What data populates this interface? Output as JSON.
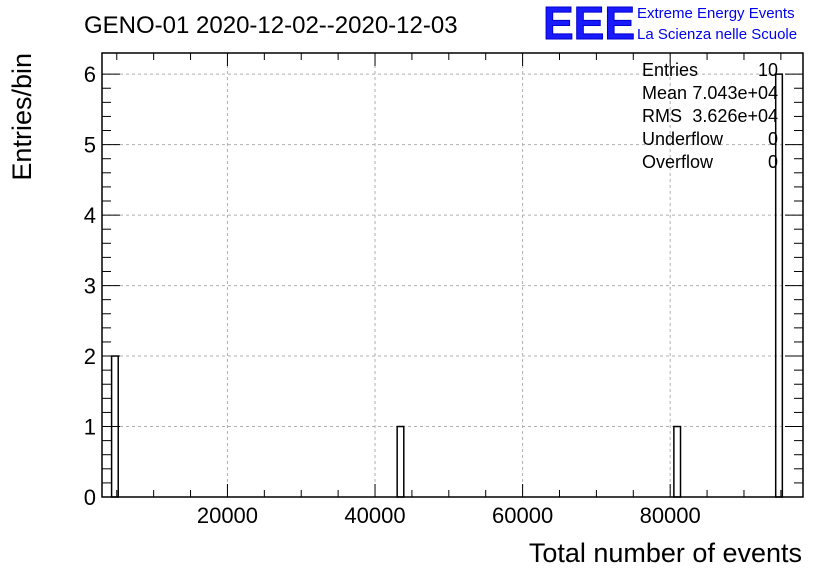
{
  "header": {
    "title": "GENO-01 2020-12-02--2020-12-03"
  },
  "logo": {
    "mark": "EEE",
    "line1": "Extreme Energy Events",
    "line2": "La Scienza nelle Scuole",
    "color": "#0000ff"
  },
  "stats": {
    "rows": [
      {
        "label": "Entries",
        "value": "10"
      },
      {
        "label": "Mean",
        "value": "7.043e+04"
      },
      {
        "label": "RMS",
        "value": "3.626e+04"
      },
      {
        "label": "Underflow",
        "value": "0"
      },
      {
        "label": "Overflow",
        "value": "0"
      }
    ]
  },
  "chart_data": {
    "type": "bar",
    "title": "GENO-01 2020-12-02--2020-12-03",
    "xlabel": "Total number of events",
    "ylabel": "Entries/bin",
    "xlim": [
      3000,
      98000
    ],
    "ylim": [
      0,
      6.3
    ],
    "grid": true,
    "x_ticks": [
      20000,
      40000,
      60000,
      80000
    ],
    "x_tick_labels": [
      "20000",
      "40000",
      "60000",
      "80000"
    ],
    "y_ticks": [
      0,
      1,
      2,
      3,
      4,
      5,
      6
    ],
    "y_tick_labels": [
      "0",
      "1",
      "2",
      "3",
      "4",
      "5",
      "6"
    ],
    "bins": [
      {
        "x0": 4300,
        "x1": 5200,
        "value": 2
      },
      {
        "x0": 43000,
        "x1": 43900,
        "value": 1
      },
      {
        "x0": 80500,
        "x1": 81400,
        "value": 1
      },
      {
        "x0": 94300,
        "x1": 95200,
        "value": 6
      }
    ]
  }
}
